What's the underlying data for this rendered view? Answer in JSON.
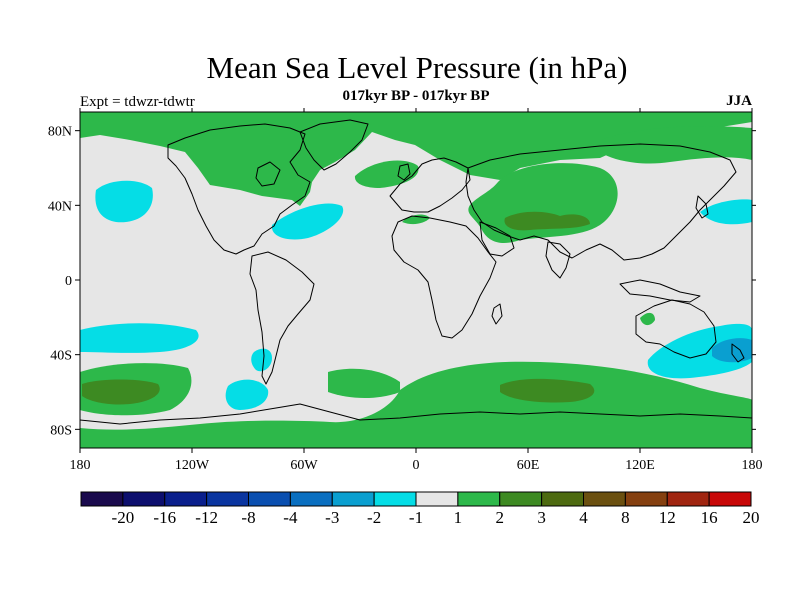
{
  "title": "Mean Sea Level Pressure (in hPa)",
  "subtitle": "017kyr BP - 017kyr BP",
  "experiment": "Expt = tdwzr-tdwtr",
  "season": "JJA",
  "map": {
    "lon_range": [
      -180,
      180
    ],
    "lat_range": [
      -90,
      90
    ],
    "x_ticks": [
      {
        "value": -180,
        "label": "180"
      },
      {
        "value": -120,
        "label": "120W"
      },
      {
        "value": -60,
        "label": "60W"
      },
      {
        "value": 0,
        "label": "0"
      },
      {
        "value": 60,
        "label": "60E"
      },
      {
        "value": 120,
        "label": "120E"
      },
      {
        "value": 180,
        "label": "180"
      }
    ],
    "y_ticks": [
      {
        "value": 80,
        "label": "80N"
      },
      {
        "value": 40,
        "label": "40N"
      },
      {
        "value": 0,
        "label": "0"
      },
      {
        "value": -40,
        "label": "40S"
      },
      {
        "value": -80,
        "label": "80S"
      }
    ],
    "background_color": "#e6e6e6"
  },
  "colorbar": {
    "labels": [
      "-20",
      "-16",
      "-12",
      "-8",
      "-4",
      "-3",
      "-2",
      "-1",
      "1",
      "2",
      "3",
      "4",
      "8",
      "12",
      "16",
      "20"
    ],
    "colors": [
      "#1a0a4d",
      "#0d0f6e",
      "#0a1f8c",
      "#0a35a0",
      "#0a4fb0",
      "#0a6fc0",
      "#0a9fd0",
      "#05dde6",
      "#e6e6e6",
      "#2db84a",
      "#3d8a22",
      "#4d6a10",
      "#6b5010",
      "#854010",
      "#a02510",
      "#c80808"
    ]
  }
}
